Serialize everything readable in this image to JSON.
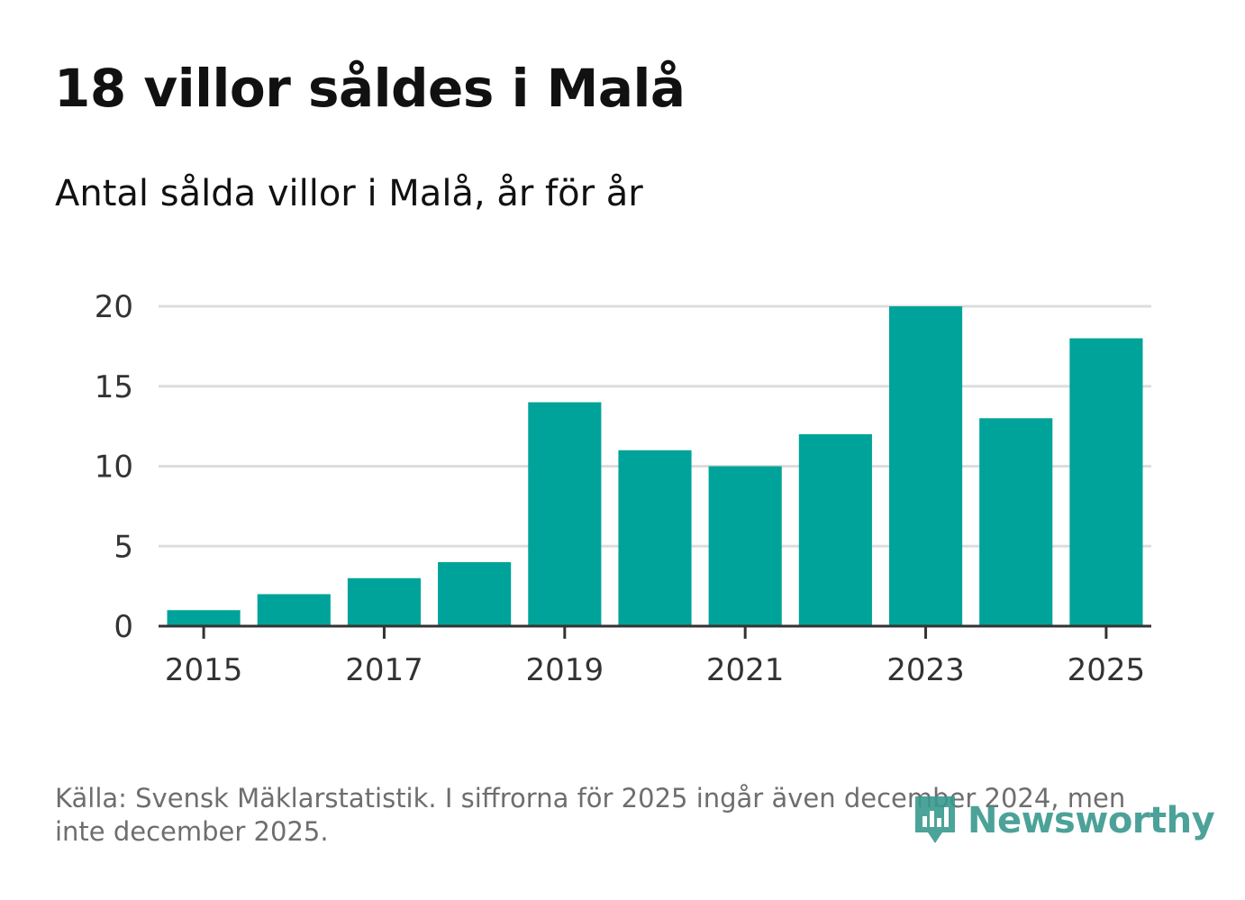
{
  "header": {
    "title": "18 villor såldes i Malå",
    "subtitle": "Antal sålda villor i Malå, år för år"
  },
  "chart_data": {
    "type": "bar",
    "title": "18 villor såldes i Malå",
    "subtitle": "Antal sålda villor i Malå, år för år",
    "categories": [
      "2015",
      "2016",
      "2017",
      "2018",
      "2019",
      "2020",
      "2021",
      "2022",
      "2023",
      "2024",
      "2025"
    ],
    "values": [
      1,
      2,
      3,
      4,
      14,
      11,
      10,
      12,
      20,
      13,
      18
    ],
    "x_tick_labels": [
      "2015",
      "2017",
      "2019",
      "2021",
      "2023",
      "2025"
    ],
    "y_ticks": [
      0,
      5,
      10,
      15,
      20
    ],
    "ylim": [
      0,
      20
    ],
    "xlabel": "",
    "ylabel": "",
    "grid": true,
    "bar_color": "#00a39a"
  },
  "footer": {
    "source": "Källa: Svensk Mäklarstatistik. I siffrorna för 2025 ingår även december 2024, men inte december 2025.",
    "brand": "Newsworthy",
    "brand_color": "#39998e"
  }
}
